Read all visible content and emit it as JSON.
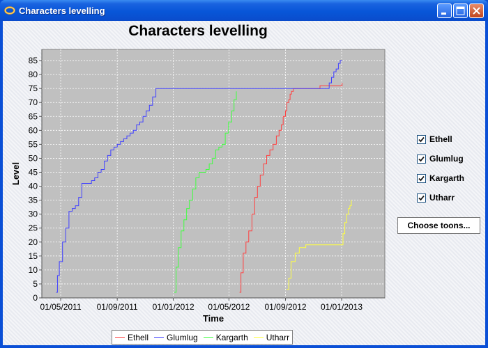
{
  "window": {
    "title": "Characters levelling",
    "controls": [
      "minimize",
      "maximize",
      "close"
    ]
  },
  "checkboxes": [
    {
      "label": "Ethell",
      "checked": true
    },
    {
      "label": "Glumlug",
      "checked": true
    },
    {
      "label": "Kargarth",
      "checked": true
    },
    {
      "label": "Utharr",
      "checked": true
    }
  ],
  "choose_button": {
    "label": "Choose toons..."
  },
  "chart_data": {
    "type": "line",
    "title": "Characters levelling",
    "xlabel": "Time",
    "ylabel": "Level",
    "xlim": [
      "2011-03-21",
      "2013-04-05"
    ],
    "ylim": [
      0,
      89
    ],
    "x_tick_labels": [
      "01/05/2011",
      "01/09/2011",
      "01/01/2012",
      "01/05/2012",
      "01/09/2012",
      "01/01/2013"
    ],
    "x_ticks": [
      "2011-05-01",
      "2011-09-01",
      "2012-01-01",
      "2012-05-01",
      "2012-09-01",
      "2013-01-01"
    ],
    "y_ticks": [
      0,
      5,
      10,
      15,
      20,
      25,
      30,
      35,
      40,
      45,
      50,
      55,
      60,
      65,
      70,
      75,
      80,
      85
    ],
    "grid": true,
    "legend_position": "bottom",
    "series": [
      {
        "name": "Ethell",
        "color": "#ff4040",
        "x": [
          "2012-05-24",
          "2012-05-27",
          "2012-06-01",
          "2012-06-07",
          "2012-06-13",
          "2012-06-20",
          "2012-06-26",
          "2012-07-02",
          "2012-07-08",
          "2012-07-15",
          "2012-07-22",
          "2012-07-29",
          "2012-08-05",
          "2012-08-12",
          "2012-08-18",
          "2012-08-23",
          "2012-08-27",
          "2012-09-01",
          "2012-09-04",
          "2012-09-08",
          "2012-09-11",
          "2012-09-14",
          "2012-09-18",
          "2012-10-01",
          "2012-11-01",
          "2012-11-15",
          "2012-12-01",
          "2012-12-20",
          "2013-01-02"
        ],
        "y": [
          2,
          9,
          16,
          20,
          24,
          30,
          36,
          40,
          44,
          48,
          51,
          53,
          55,
          58,
          60,
          62,
          65,
          67,
          70,
          71,
          73,
          74,
          75,
          75,
          75,
          76,
          76,
          76,
          77
        ]
      },
      {
        "name": "Glumlug",
        "color": "#4040ff",
        "x": [
          "2011-04-21",
          "2011-04-24",
          "2011-04-28",
          "2011-05-05",
          "2011-05-12",
          "2011-05-19",
          "2011-05-26",
          "2011-06-02",
          "2011-06-09",
          "2011-06-16",
          "2011-06-23",
          "2011-06-30",
          "2011-07-07",
          "2011-07-14",
          "2011-07-21",
          "2011-07-28",
          "2011-08-04",
          "2011-08-11",
          "2011-08-18",
          "2011-08-25",
          "2011-09-01",
          "2011-09-08",
          "2011-09-15",
          "2011-09-22",
          "2011-09-29",
          "2011-10-06",
          "2011-10-13",
          "2011-10-20",
          "2011-10-27",
          "2011-11-03",
          "2011-11-10",
          "2011-11-17",
          "2011-11-24",
          "2011-12-01",
          "2012-01-15",
          "2012-06-15",
          "2012-10-15",
          "2012-12-01",
          "2012-12-05",
          "2012-12-10",
          "2012-12-15",
          "2012-12-20",
          "2012-12-25",
          "2012-12-29",
          "2013-01-02"
        ],
        "y": [
          2,
          8,
          13,
          20,
          25,
          31,
          32,
          33,
          36,
          41,
          41,
          41,
          42,
          43,
          45,
          46,
          49,
          51,
          53,
          54,
          55,
          56,
          57,
          58,
          59,
          60,
          62,
          63,
          65,
          67,
          69,
          72,
          75,
          75,
          75,
          75,
          75,
          75,
          77,
          79,
          81,
          82,
          84,
          85,
          85
        ]
      },
      {
        "name": "Kargarth",
        "color": "#40ff40",
        "x": [
          "2012-01-03",
          "2012-01-07",
          "2012-01-12",
          "2012-01-18",
          "2012-01-24",
          "2012-01-30",
          "2012-02-05",
          "2012-02-12",
          "2012-02-19",
          "2012-02-26",
          "2012-03-05",
          "2012-03-12",
          "2012-03-19",
          "2012-03-26",
          "2012-04-02",
          "2012-04-09",
          "2012-04-16",
          "2012-04-23",
          "2012-04-30",
          "2012-05-07",
          "2012-05-12",
          "2012-05-17"
        ],
        "y": [
          2,
          11,
          18,
          24,
          28,
          32,
          35,
          39,
          43,
          45,
          45,
          46,
          48,
          50,
          53,
          54,
          55,
          59,
          63,
          67,
          71,
          74
        ]
      },
      {
        "name": "Utharr",
        "color": "#ffff40",
        "x": [
          "2012-09-03",
          "2012-09-08",
          "2012-09-13",
          "2012-09-22",
          "2012-10-01",
          "2012-10-15",
          "2012-11-01",
          "2012-12-01",
          "2012-12-20",
          "2013-01-01",
          "2013-01-04",
          "2013-01-08",
          "2013-01-12",
          "2013-01-16",
          "2013-01-19",
          "2013-01-22"
        ],
        "y": [
          3,
          7,
          13,
          16,
          18,
          19,
          19,
          19,
          19,
          19,
          23,
          27,
          30,
          32,
          33,
          35
        ]
      }
    ]
  }
}
